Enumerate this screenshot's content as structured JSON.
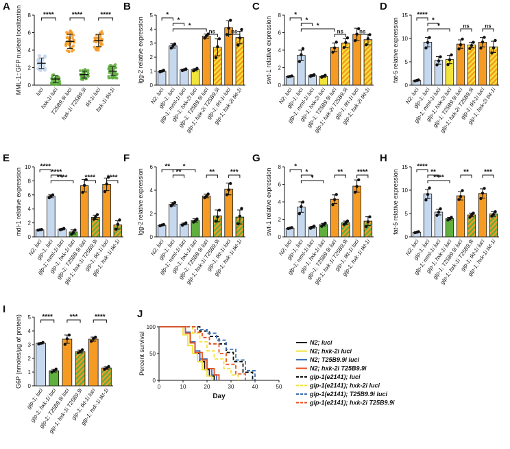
{
  "figure": {
    "colors": {
      "blue": "#c6d8ee",
      "yellow": "#f2e33a",
      "orange": "#f59a23",
      "green": "#5fae3e",
      "hatch_orange": "#f59a23",
      "hatch_green": "#5fae3e",
      "black": "#111111"
    }
  },
  "chart_data": [
    {
      "id": "A",
      "type": "scatter",
      "panel_label": "A",
      "title": "",
      "ylabel": "MML-1::GFP nuclear localization",
      "ylim": [
        0,
        8
      ],
      "yticks": [
        0,
        2,
        4,
        6,
        8
      ],
      "categories": [
        "luci",
        "hxk-1i luci",
        "T25B9.9i luci",
        "hxk-1i T25B9.9i",
        "tkt-1i luci",
        "hxk-1i tkt-1i"
      ],
      "styles": [
        "blue",
        "green",
        "orange",
        "green",
        "orange",
        "green"
      ],
      "values": [
        2.5,
        0.7,
        5.0,
        1.2,
        5.1,
        1.6
      ],
      "errors": [
        0.6,
        0.4,
        0.8,
        0.4,
        0.7,
        0.5
      ],
      "comparisons": [
        {
          "from": 0,
          "to": 1,
          "label": "****",
          "level": 0
        },
        {
          "from": 2,
          "to": 3,
          "label": "****",
          "level": 0
        },
        {
          "from": 4,
          "to": 5,
          "label": "****",
          "level": 0
        }
      ]
    },
    {
      "id": "B",
      "type": "bar",
      "panel_label": "B",
      "title": "",
      "ylabel": "lgg-2 relative expression",
      "ylim": [
        0,
        5
      ],
      "yticks": [
        0,
        1,
        2,
        3,
        4,
        5
      ],
      "categories": [
        "N2; luci",
        "glp-1; luci",
        "glp-1; mml-1i luci",
        "glp-1; hxk-2i luci",
        "glp-1; T25B9.9i luci",
        "glp-1; hxk-2i T25B9.9i",
        "glp-1; tkt-1i luci",
        "glp-1; hxk-2i tkt-1i"
      ],
      "styles": [
        "blue",
        "blue",
        "blue",
        "yellow",
        "orange",
        "hatch_orange",
        "orange",
        "hatch_orange"
      ],
      "values": [
        1.0,
        2.8,
        1.1,
        1.1,
        3.5,
        2.7,
        4.1,
        3.4
      ],
      "errors": [
        0.05,
        0.15,
        0.05,
        0.08,
        0.15,
        0.6,
        0.5,
        0.45
      ],
      "comparisons": [
        {
          "from": 0,
          "to": 1,
          "label": "*",
          "level": 0
        },
        {
          "from": 1,
          "to": 2,
          "label": "*",
          "level": 1
        },
        {
          "from": 1,
          "to": 4,
          "label": "*",
          "level": 2
        },
        {
          "from": 4,
          "to": 5,
          "label": "ns",
          "level": 3
        },
        {
          "from": 6,
          "to": 7,
          "label": "ns",
          "level": 3
        }
      ]
    },
    {
      "id": "C",
      "type": "bar",
      "panel_label": "C",
      "title": "",
      "ylabel": "swt-1 relative expression",
      "ylim": [
        0,
        8
      ],
      "yticks": [
        0,
        2,
        4,
        6,
        8
      ],
      "categories": [
        "N2; luci",
        "glp-1; luci",
        "glp-1; mml-1i luci",
        "glp-1; hxk-2i luci",
        "glp-1; T25B9.9i luci",
        "glp-1; hxk-2i T25B9.9i",
        "glp-1; tkt-1i luci",
        "glp-1; hxk-2i tkt-1i"
      ],
      "styles": [
        "blue",
        "blue",
        "blue",
        "yellow",
        "orange",
        "hatch_orange",
        "orange",
        "hatch_orange"
      ],
      "values": [
        1.0,
        3.4,
        1.1,
        1.0,
        4.3,
        4.8,
        5.8,
        5.2
      ],
      "errors": [
        0.05,
        0.6,
        0.1,
        0.1,
        0.5,
        0.5,
        0.7,
        0.6
      ],
      "comparisons": [
        {
          "from": 0,
          "to": 1,
          "label": "*",
          "level": 0
        },
        {
          "from": 1,
          "to": 2,
          "label": "*",
          "level": 1
        },
        {
          "from": 1,
          "to": 4,
          "label": "*",
          "level": 2
        },
        {
          "from": 4,
          "to": 5,
          "label": "ns",
          "level": 3
        },
        {
          "from": 6,
          "to": 7,
          "label": "ns",
          "level": 3
        }
      ]
    },
    {
      "id": "D",
      "type": "bar",
      "panel_label": "D",
      "title": "",
      "ylabel": "fat-5 relative expression",
      "ylim": [
        0,
        15
      ],
      "yticks": [
        0,
        5,
        10,
        15
      ],
      "categories": [
        "N2; luci",
        "glp-1; luci",
        "glp-1; mml-1i luci",
        "glp-1; hxk-2i luci",
        "glp-1; T25B9.9i luci",
        "glp-1; hxk-2i T25B9.9i",
        "glp-1; tkt-1i luci",
        "glp-1; hxk-2i tkt-1i"
      ],
      "styles": [
        "blue",
        "blue",
        "blue",
        "yellow",
        "orange",
        "hatch_orange",
        "orange",
        "hatch_orange"
      ],
      "values": [
        1.0,
        9.2,
        5.3,
        5.5,
        8.8,
        8.6,
        9.2,
        8.2
      ],
      "errors": [
        0.1,
        1.0,
        0.8,
        0.9,
        0.9,
        0.6,
        1.0,
        1.2
      ],
      "comparisons": [
        {
          "from": 0,
          "to": 1,
          "label": "****",
          "level": 0
        },
        {
          "from": 1,
          "to": 2,
          "label": "*",
          "level": 1
        },
        {
          "from": 1,
          "to": 3,
          "label": "*",
          "level": 2
        },
        {
          "from": 4,
          "to": 5,
          "label": "ns",
          "level": 2
        },
        {
          "from": 6,
          "to": 7,
          "label": "ns",
          "level": 2
        }
      ]
    },
    {
      "id": "E",
      "type": "bar",
      "panel_label": "E",
      "title": "",
      "ylabel": "mdl-1 relative expression",
      "ylim": [
        0,
        10
      ],
      "yticks": [
        0,
        2,
        4,
        6,
        8,
        10
      ],
      "categories": [
        "N2; luci",
        "glp-1; luci",
        "glp-1; mml-1i luci",
        "glp-1; hxk-1i luci",
        "glp-1; T25B9.9i luci",
        "glp-1; hxk-1i T25B9.9i",
        "glp-1; tkt-1i luci",
        "glp-1; hxk-1i tkt-1i"
      ],
      "styles": [
        "blue",
        "blue",
        "blue",
        "green",
        "orange",
        "hatch_green",
        "orange",
        "hatch_green"
      ],
      "values": [
        1.0,
        5.8,
        1.1,
        0.7,
        7.3,
        2.8,
        7.5,
        1.7
      ],
      "errors": [
        0.05,
        0.2,
        0.1,
        0.3,
        0.9,
        0.3,
        0.9,
        0.6
      ],
      "comparisons": [
        {
          "from": 0,
          "to": 1,
          "label": "****",
          "level": 0
        },
        {
          "from": 1,
          "to": 2,
          "label": "****",
          "level": 1
        },
        {
          "from": 1,
          "to": 3,
          "label": "****",
          "level": 2
        },
        {
          "from": 4,
          "to": 5,
          "label": "****",
          "level": 2
        },
        {
          "from": 6,
          "to": 7,
          "label": "****",
          "level": 2
        }
      ]
    },
    {
      "id": "F",
      "type": "bar",
      "panel_label": "F",
      "title": "",
      "ylabel": "lgg-2 relative expression",
      "ylim": [
        0,
        6
      ],
      "yticks": [
        0,
        2,
        4,
        6
      ],
      "categories": [
        "N2; luci",
        "glp-1; luci",
        "glp-1; mml-1i luci",
        "glp-1; hxk-1i luci",
        "glp-1; T25B9.9i luci",
        "glp-1; hxk-1i T25B9.9i",
        "glp-1; tkt-1i luci",
        "glp-1; hxk-1i tkt-1i"
      ],
      "styles": [
        "blue",
        "blue",
        "blue",
        "green",
        "orange",
        "hatch_green",
        "orange",
        "hatch_green"
      ],
      "values": [
        1.0,
        2.8,
        1.1,
        1.4,
        3.5,
        1.8,
        4.1,
        1.7
      ],
      "errors": [
        0.05,
        0.15,
        0.08,
        0.15,
        0.15,
        0.5,
        0.5,
        0.6
      ],
      "comparisons": [
        {
          "from": 0,
          "to": 1,
          "label": "**",
          "level": 0
        },
        {
          "from": 1,
          "to": 2,
          "label": "**",
          "level": 1
        },
        {
          "from": 1,
          "to": 3,
          "label": "*",
          "level": 0
        },
        {
          "from": 4,
          "to": 5,
          "label": "**",
          "level": 1
        },
        {
          "from": 6,
          "to": 7,
          "label": "***",
          "level": 1
        }
      ]
    },
    {
      "id": "G",
      "type": "bar",
      "panel_label": "G",
      "title": "",
      "ylabel": "swt-1 relative expression",
      "ylim": [
        0,
        8
      ],
      "yticks": [
        0,
        2,
        4,
        6,
        8
      ],
      "categories": [
        "N2; luci",
        "glp-1; luci",
        "glp-1; mml-1i luci",
        "glp-1; hxk-1i luci",
        "glp-1; T25B9.9i luci",
        "glp-1; hxk-1i T25B9.9i",
        "glp-1; tkt-1i luci",
        "glp-1; hxk-1i tkt-1i"
      ],
      "styles": [
        "blue",
        "blue",
        "blue",
        "green",
        "orange",
        "hatch_green",
        "orange",
        "hatch_green"
      ],
      "values": [
        1.0,
        3.4,
        1.1,
        1.4,
        4.3,
        1.6,
        5.8,
        1.8
      ],
      "errors": [
        0.05,
        0.6,
        0.1,
        0.15,
        0.5,
        0.2,
        0.7,
        0.5
      ],
      "comparisons": [
        {
          "from": 0,
          "to": 1,
          "label": "*",
          "level": 0
        },
        {
          "from": 1,
          "to": 2,
          "label": "*",
          "level": 1
        },
        {
          "from": 1,
          "to": 3,
          "label": "*",
          "level": 2
        },
        {
          "from": 4,
          "to": 5,
          "label": "**",
          "level": 1
        },
        {
          "from": 6,
          "to": 7,
          "label": "****",
          "level": 1
        }
      ]
    },
    {
      "id": "H",
      "type": "bar",
      "panel_label": "H",
      "title": "",
      "ylabel": "fat-5 relative expression",
      "ylim": [
        0,
        15
      ],
      "yticks": [
        0,
        5,
        10,
        15
      ],
      "categories": [
        "N2; luci",
        "glp-1; luci",
        "glp-1; mml-1i luci",
        "glp-1; hxk-1i luci",
        "glp-1; T25B9.9i luci",
        "glp-1; hxk-1i T25B9.9i",
        "glp-1; tkt-1i luci",
        "glp-1; hxk-1i tkt-1i"
      ],
      "styles": [
        "blue",
        "blue",
        "blue",
        "green",
        "orange",
        "hatch_green",
        "orange",
        "hatch_green"
      ],
      "values": [
        1.0,
        9.2,
        5.3,
        3.9,
        8.8,
        4.7,
        9.3,
        4.9
      ],
      "errors": [
        0.1,
        1.0,
        0.6,
        0.3,
        0.9,
        0.4,
        1.0,
        0.5
      ],
      "comparisons": [
        {
          "from": 0,
          "to": 1,
          "label": "****",
          "level": 0
        },
        {
          "from": 1,
          "to": 2,
          "label": "**",
          "level": 1
        },
        {
          "from": 1,
          "to": 3,
          "label": "****",
          "level": 2
        },
        {
          "from": 4,
          "to": 5,
          "label": "**",
          "level": 1
        },
        {
          "from": 6,
          "to": 7,
          "label": "***",
          "level": 1
        }
      ]
    },
    {
      "id": "I",
      "type": "bar",
      "panel_label": "I",
      "title": "",
      "ylabel": "G6P (nmoles/µg of protein)",
      "ylim": [
        0,
        5
      ],
      "yticks": [
        0,
        1,
        2,
        3,
        4,
        5
      ],
      "categories": [
        "glp-1; luci",
        "glp-1; hxk-1i luci",
        "glp-1; T25B9.9i luci",
        "glp-1; hxk-1i T25B9.9i",
        "glp-1; tkt-1i luci",
        "glp-1; hxk-1i tkt-1i"
      ],
      "styles": [
        "blue",
        "green",
        "orange",
        "hatch_green",
        "orange",
        "hatch_green"
      ],
      "values": [
        3.1,
        1.1,
        3.4,
        2.5,
        3.4,
        1.3
      ],
      "errors": [
        0.05,
        0.1,
        0.3,
        0.1,
        0.15,
        0.1
      ],
      "comparisons": [
        {
          "from": 0,
          "to": 1,
          "label": "****",
          "level": 0
        },
        {
          "from": 2,
          "to": 3,
          "label": "***",
          "level": 0
        },
        {
          "from": 4,
          "to": 5,
          "label": "****",
          "level": 0
        }
      ]
    },
    {
      "id": "J",
      "type": "line",
      "panel_label": "J",
      "title": "",
      "xlabel": "Day",
      "ylabel": "Percent survival",
      "xlim": [
        0,
        50
      ],
      "ylim": [
        0,
        100
      ],
      "xticks": [
        0,
        10,
        20,
        30,
        40,
        50
      ],
      "yticks": [
        0,
        50,
        100
      ],
      "series": [
        {
          "name": "N2; luci",
          "color": "#111111",
          "dash": false,
          "x": [
            0,
            8,
            11,
            13,
            15,
            17,
            19,
            21,
            23
          ],
          "y": [
            100,
            100,
            90,
            70,
            50,
            35,
            20,
            8,
            0
          ]
        },
        {
          "name": "N2; hxk-2i luci",
          "color": "#f2e33a",
          "dash": false,
          "x": [
            0,
            8,
            10,
            12,
            14,
            16,
            18,
            20,
            22
          ],
          "y": [
            100,
            100,
            85,
            65,
            50,
            35,
            20,
            8,
            0
          ]
        },
        {
          "name": "N2; T25B9.9i luci",
          "color": "#3b6fb6",
          "dash": false,
          "x": [
            0,
            9,
            11,
            13,
            15,
            17,
            20,
            22,
            24
          ],
          "y": [
            100,
            100,
            90,
            72,
            55,
            40,
            22,
            10,
            0
          ]
        },
        {
          "name": "N2; hxk-2i T25B9.9i",
          "color": "#e8501e",
          "dash": false,
          "x": [
            0,
            8,
            11,
            13,
            15,
            18,
            20,
            23,
            25
          ],
          "y": [
            100,
            100,
            88,
            70,
            52,
            38,
            22,
            10,
            0
          ]
        },
        {
          "name": "glp-1(e2141); luci",
          "color": "#111111",
          "dash": true,
          "x": [
            0,
            12,
            17,
            21,
            25,
            28,
            31,
            35,
            39
          ],
          "y": [
            100,
            100,
            92,
            82,
            68,
            52,
            35,
            15,
            0
          ]
        },
        {
          "name": "glp-1(e2141); hxk-2i luci",
          "color": "#f2e33a",
          "dash": true,
          "x": [
            0,
            10,
            14,
            17,
            20,
            23,
            27,
            30,
            33
          ],
          "y": [
            100,
            100,
            88,
            72,
            55,
            40,
            22,
            10,
            0
          ]
        },
        {
          "name": "glp-1(e2141); T25B9.9i luci",
          "color": "#3b6fb6",
          "dash": true,
          "x": [
            0,
            12,
            16,
            20,
            24,
            28,
            32,
            36,
            40
          ],
          "y": [
            100,
            100,
            95,
            88,
            75,
            58,
            38,
            18,
            0
          ]
        },
        {
          "name": "glp-1(e2141); hxk-2i T25B9.9i",
          "color": "#e8501e",
          "dash": true,
          "x": [
            0,
            12,
            15,
            18,
            21,
            25,
            28,
            32,
            36
          ],
          "y": [
            100,
            100,
            90,
            80,
            68,
            50,
            30,
            12,
            0
          ]
        }
      ]
    }
  ]
}
